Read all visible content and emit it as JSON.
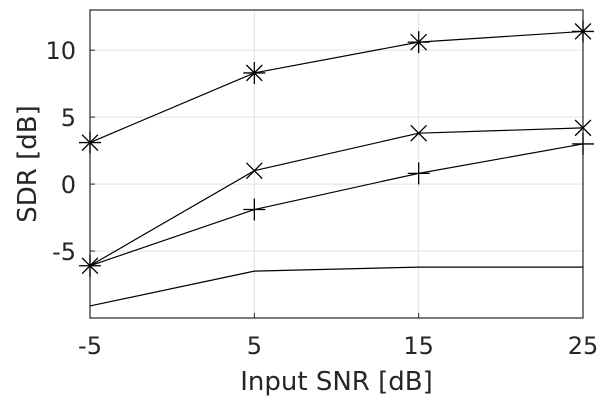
{
  "chart_data": {
    "type": "line",
    "xlabel": "Input SNR [dB]",
    "ylabel": "SDR [dB]",
    "x": [
      -5,
      5,
      15,
      25
    ],
    "xticks": [
      "-5",
      "5",
      "15",
      "25"
    ],
    "yticks": [
      "-5",
      "0",
      "5",
      "10"
    ],
    "ytick_values": [
      -5,
      0,
      5,
      10
    ],
    "xlim": [
      -5,
      25
    ],
    "ylim": [
      -10,
      13
    ],
    "grid": true,
    "series": [
      {
        "marker": "asterisk",
        "values": [
          3.1,
          8.3,
          10.6,
          11.4
        ]
      },
      {
        "marker": "x",
        "values": [
          -6.1,
          1.0,
          3.8,
          4.2
        ]
      },
      {
        "marker": "plus",
        "values": [
          -6.1,
          -1.9,
          0.8,
          3.0
        ]
      },
      {
        "marker": "none",
        "values": [
          -9.1,
          -6.5,
          -6.2,
          -6.2
        ]
      }
    ]
  }
}
